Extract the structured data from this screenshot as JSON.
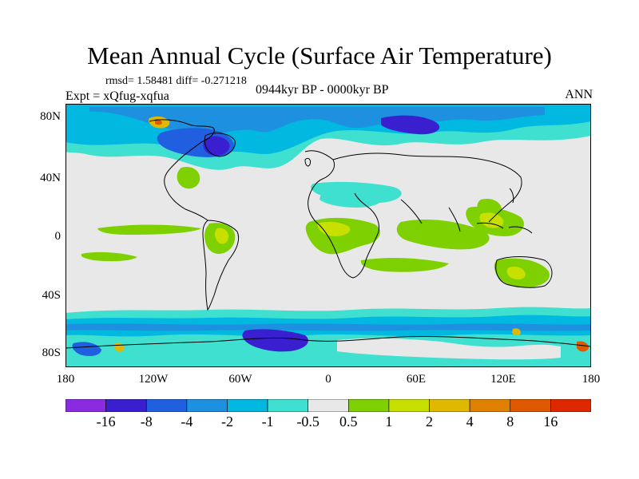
{
  "title": "Mean Annual Cycle (Surface Air Temperature)",
  "stats": "rmsd= 1.58481 diff= -0.271218",
  "experiment": "Expt = xQfug-xqfua",
  "period": "0944kyr BP - 0000kyr BP",
  "season": "ANN",
  "lat_ticks": [
    "80N",
    "40N",
    "0",
    "40S",
    "80S"
  ],
  "lon_ticks": [
    "180",
    "120W",
    "60W",
    "0",
    "60E",
    "120E",
    "180"
  ],
  "colorbar": {
    "labels": [
      "-16",
      "-8",
      "-4",
      "-2",
      "-1",
      "-0.5",
      "0.5",
      "1",
      "2",
      "4",
      "8",
      "16"
    ],
    "colors": [
      "#8a2be2",
      "#3a1fd0",
      "#1f5fe0",
      "#1e90e0",
      "#00b8e0",
      "#40e0d0",
      "#e8e8e8",
      "#7fd000",
      "#c8e000",
      "#e0b800",
      "#e08000",
      "#e05800",
      "#e02800"
    ]
  },
  "map_colors": {
    "neutral": "#e8e8e8",
    "coast": "#000000"
  }
}
